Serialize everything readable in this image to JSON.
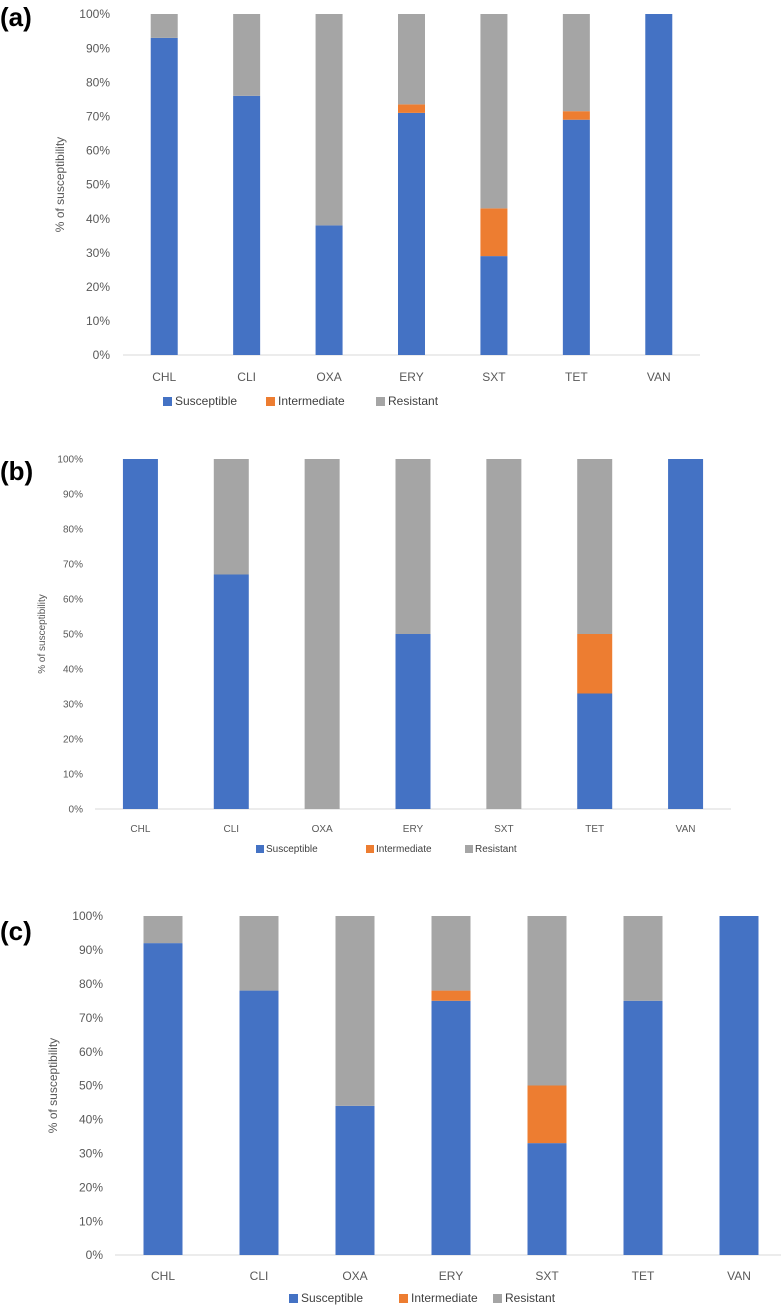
{
  "chart_data": [
    {
      "panel": "(a)",
      "type": "bar",
      "stacked": true,
      "categories": [
        "CHL",
        "CLI",
        "OXA",
        "ERY",
        "SXT",
        "TET",
        "VAN"
      ],
      "series": [
        {
          "name": "Susceptible",
          "color": "#4472C4",
          "values": [
            93,
            76,
            38,
            71,
            29,
            69,
            100
          ]
        },
        {
          "name": "Intermediate",
          "color": "#ED7D31",
          "values": [
            0,
            0,
            0,
            2.5,
            14,
            2.5,
            0
          ]
        },
        {
          "name": "Resistant",
          "color": "#A5A5A5",
          "values": [
            7,
            24,
            62,
            26.5,
            57,
            28.5,
            0
          ]
        }
      ],
      "ylabel": "% of susceptibility",
      "ylim": [
        0,
        100
      ],
      "yticks": [
        "0%",
        "10%",
        "20%",
        "30%",
        "40%",
        "50%",
        "60%",
        "70%",
        "80%",
        "90%",
        "100%"
      ],
      "legend_position": "bottom"
    },
    {
      "panel": "(b)",
      "type": "bar",
      "stacked": true,
      "categories": [
        "CHL",
        "CLI",
        "OXA",
        "ERY",
        "SXT",
        "TET",
        "VAN"
      ],
      "series": [
        {
          "name": "Susceptible",
          "color": "#4472C4",
          "values": [
            100,
            67,
            0,
            50,
            0,
            33,
            100
          ]
        },
        {
          "name": "Intermediate",
          "color": "#ED7D31",
          "values": [
            0,
            0,
            0,
            0,
            0,
            17,
            0
          ]
        },
        {
          "name": "Resistant",
          "color": "#A5A5A5",
          "values": [
            0,
            33,
            100,
            50,
            100,
            50,
            0
          ]
        }
      ],
      "ylabel": "% of susceptibility",
      "ylim": [
        0,
        100
      ],
      "yticks": [
        "0%",
        "10%",
        "20%",
        "30%",
        "40%",
        "50%",
        "60%",
        "70%",
        "80%",
        "90%",
        "100%"
      ],
      "legend_position": "bottom"
    },
    {
      "panel": "(c)",
      "type": "bar",
      "stacked": true,
      "categories": [
        "CHL",
        "CLI",
        "OXA",
        "ERY",
        "SXT",
        "TET",
        "VAN"
      ],
      "series": [
        {
          "name": "Susceptible",
          "color": "#4472C4",
          "values": [
            92,
            78,
            44,
            75,
            33,
            75,
            100
          ]
        },
        {
          "name": "Intermediate",
          "color": "#ED7D31",
          "values": [
            0,
            0,
            0,
            3,
            17,
            0,
            0
          ]
        },
        {
          "name": "Resistant",
          "color": "#A5A5A5",
          "values": [
            8,
            22,
            56,
            22,
            50,
            25,
            0
          ]
        }
      ],
      "ylabel": "% of susceptibility",
      "ylim": [
        0,
        100
      ],
      "yticks": [
        "0%",
        "10%",
        "20%",
        "30%",
        "40%",
        "50%",
        "60%",
        "70%",
        "80%",
        "90%",
        "100%"
      ],
      "legend_position": "bottom"
    }
  ]
}
